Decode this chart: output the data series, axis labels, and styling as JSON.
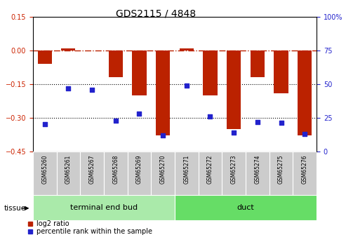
{
  "title": "GDS2115 / 4848",
  "samples": [
    "GSM65260",
    "GSM65261",
    "GSM65267",
    "GSM65268",
    "GSM65269",
    "GSM65270",
    "GSM65271",
    "GSM65272",
    "GSM65273",
    "GSM65274",
    "GSM65275",
    "GSM65276"
  ],
  "log2_ratio": [
    -0.06,
    0.01,
    0.0,
    -0.12,
    -0.2,
    -0.38,
    0.01,
    -0.2,
    -0.35,
    -0.12,
    -0.19,
    -0.38
  ],
  "percentile_rank": [
    20,
    47,
    46,
    23,
    28,
    12,
    49,
    26,
    14,
    22,
    21,
    13
  ],
  "groups": [
    {
      "label": "terminal end bud",
      "start": 0,
      "end": 6,
      "color": "#aaeaaa"
    },
    {
      "label": "duct",
      "start": 6,
      "end": 12,
      "color": "#66dd66"
    }
  ],
  "ylim_left": [
    -0.45,
    0.15
  ],
  "ylim_right": [
    0,
    100
  ],
  "yticks_left": [
    0.15,
    0.0,
    -0.15,
    -0.3,
    -0.45
  ],
  "yticks_right": [
    100,
    75,
    50,
    25,
    0
  ],
  "dotted_lines": [
    -0.15,
    -0.3
  ],
  "bar_color": "#bb2200",
  "scatter_color": "#2222cc",
  "bar_width": 0.6,
  "tissue_label": "tissue",
  "legend_red": "log2 ratio",
  "legend_blue": "percentile rank within the sample",
  "sample_box_color": "#cccccc",
  "title_fontsize": 10,
  "tick_fontsize": 7,
  "sample_fontsize": 5.5,
  "group_fontsize": 8,
  "legend_fontsize": 7
}
